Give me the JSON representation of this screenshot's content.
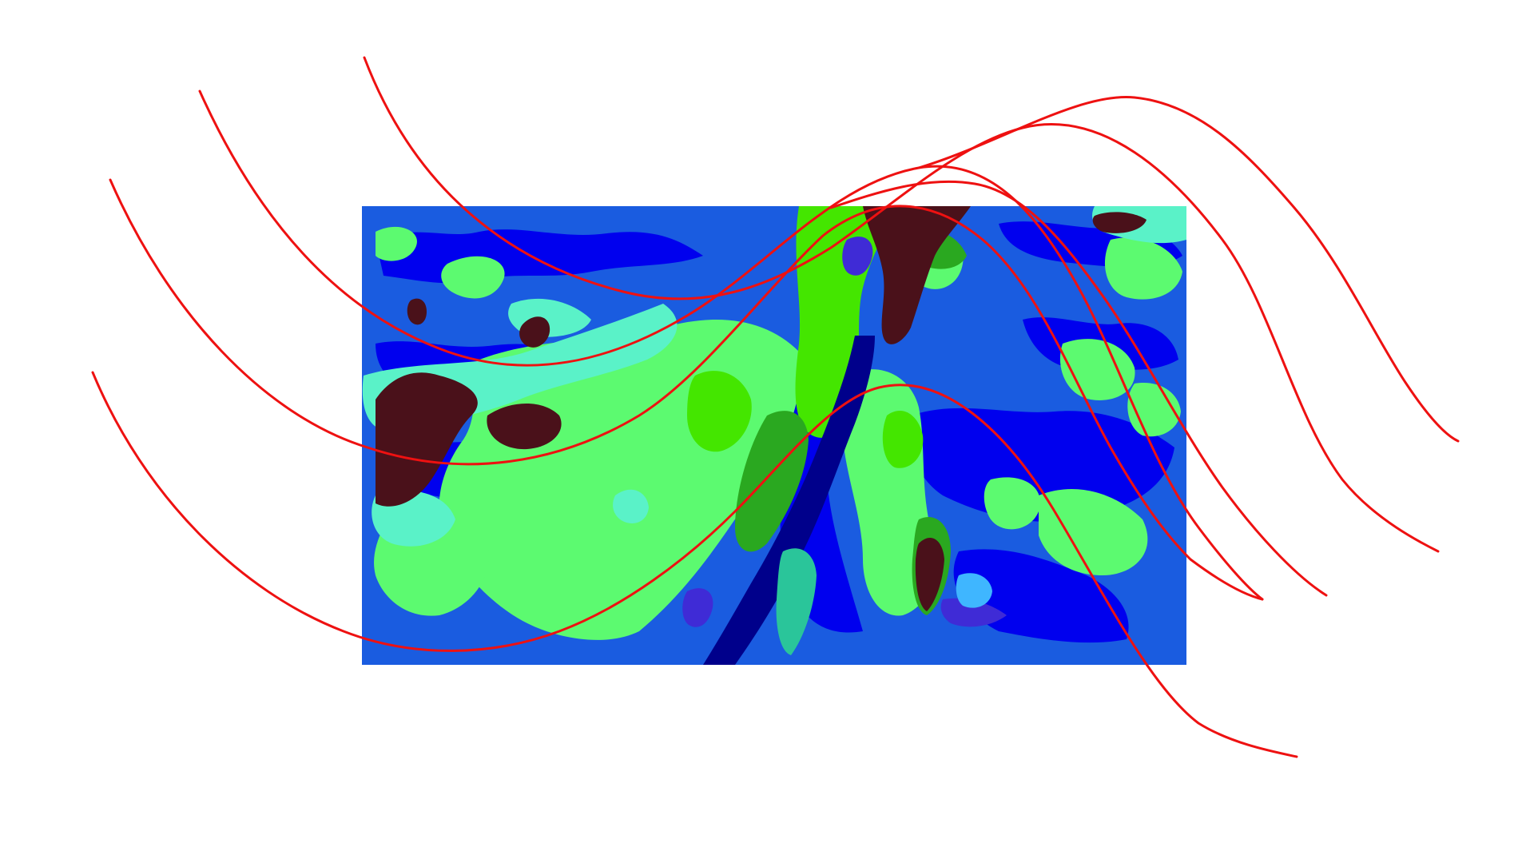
{
  "palette": {
    "background": "#ffffff",
    "base_blue": "#1a5ce0",
    "deep_blue": "#0000ee",
    "navy": "#00008b",
    "violet_blue": "#3f2bd6",
    "light_green": "#5cfa70",
    "aqua": "#5af2c8",
    "lime": "#44e600",
    "dark_green": "#2aa820",
    "teal": "#2ac59a",
    "sky": "#3fb6ff",
    "maroon": "#4a111a",
    "curve_red": "#ee1111"
  },
  "layers": {
    "heatmap": "heatmap-panel",
    "curves": [
      "red-curve-1",
      "red-curve-2",
      "red-curve-3",
      "red-curve-4",
      "red-curve-5",
      "red-curve-6"
    ]
  }
}
